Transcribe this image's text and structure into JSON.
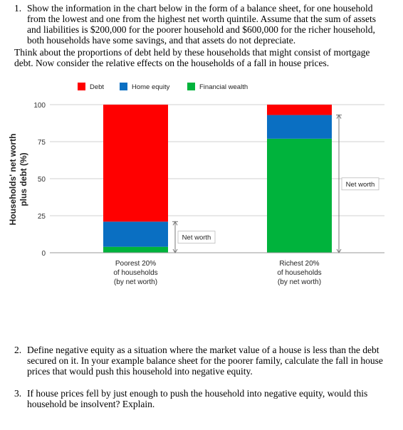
{
  "questions": {
    "q1": {
      "number": "1.",
      "lines": [
        "Show the information in the chart below in the form of a balance sheet, for one household",
        "from the lowest and one from the highest net worth quintile. Assume that the sum of assets",
        "and liabilities is $200,000 for the poorer household and $600,000 for the richer household,",
        "both households have some savings, and that assets do not depreciate."
      ],
      "extra_lines": [
        "Think about the proportions of debt held by these households that might consist of mortgage",
        "debt. Now consider the relative effects on the households of a fall in house prices."
      ]
    },
    "q2": {
      "number": "2.",
      "lines": [
        "Define negative equity as a situation where the market value of a house is less than the debt",
        "secured on it. In your example balance sheet for the poorer family, calculate the fall in house",
        "prices that would push this household into negative equity."
      ]
    },
    "q3": {
      "number": "3.",
      "lines": [
        "If house prices fell by just enough to push the household into negative equity, would this",
        "household be insolvent? Explain."
      ]
    }
  },
  "chart_data": {
    "type": "bar",
    "stacked": true,
    "ylabel": [
      "Households' net worth",
      "plus debt (%)"
    ],
    "ylim": [
      0,
      100
    ],
    "yticks": [
      0,
      25,
      50,
      75,
      100
    ],
    "categories": [
      [
        "Poorest 20%",
        "of households",
        "(by net worth)"
      ],
      [
        "Richest 20%",
        "of households",
        "(by net worth)"
      ]
    ],
    "series": [
      {
        "name": "Financial wealth",
        "color": "#00b33c",
        "values": [
          4,
          77
        ]
      },
      {
        "name": "Home equity",
        "color": "#0a6fc2",
        "values": [
          17,
          16
        ]
      },
      {
        "name": "Debt",
        "color": "#ff0000",
        "values": [
          79,
          7
        ]
      }
    ],
    "legend_order": [
      "Debt",
      "Home equity",
      "Financial wealth"
    ],
    "legend_position": "top",
    "annotation_label": "Net worth"
  }
}
